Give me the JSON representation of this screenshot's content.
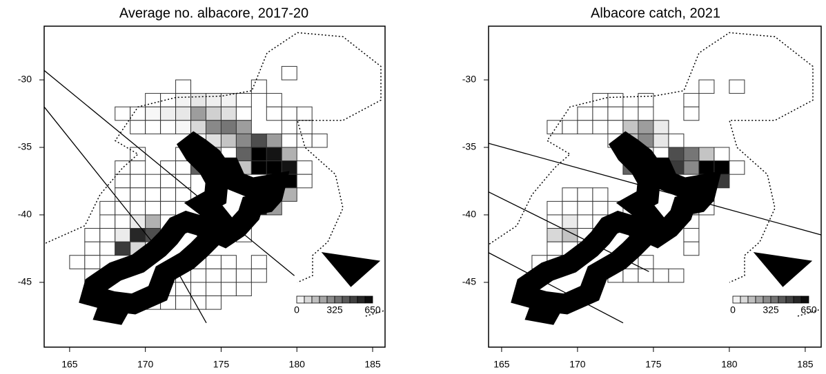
{
  "maps": [
    {
      "title": "Average no. albacore, 2017-20",
      "xlim": [
        163.32,
        185.82
      ],
      "ylim": [
        -49.8,
        -26.02
      ],
      "xticks": [
        165,
        170,
        175,
        180,
        185
      ],
      "yticks": [
        -30,
        -35,
        -40,
        -45
      ],
      "legend_ticks": [
        0,
        325,
        650
      ],
      "cells": [
        [
          172,
          -30,
          0
        ],
        [
          179,
          -29,
          0
        ],
        [
          177,
          -30,
          0
        ],
        [
          170,
          -31,
          0
        ],
        [
          171,
          -31,
          0
        ],
        [
          172,
          -31,
          30
        ],
        [
          173,
          -31,
          60
        ],
        [
          174,
          -31,
          40
        ],
        [
          175,
          -31,
          30
        ],
        [
          176,
          -31,
          0
        ],
        [
          178,
          -31,
          0
        ],
        [
          168,
          -32,
          0
        ],
        [
          169,
          -32,
          0
        ],
        [
          170,
          -32,
          20
        ],
        [
          171,
          -32,
          40
        ],
        [
          172,
          -32,
          60
        ],
        [
          173,
          -32,
          250
        ],
        [
          174,
          -32,
          120
        ],
        [
          175,
          -32,
          80
        ],
        [
          176,
          -32,
          0
        ],
        [
          178,
          -32,
          0
        ],
        [
          179,
          -32,
          0
        ],
        [
          180,
          -32,
          0
        ],
        [
          169,
          -33,
          0
        ],
        [
          170,
          -33,
          0
        ],
        [
          171,
          -33,
          0
        ],
        [
          172,
          -33,
          20
        ],
        [
          173,
          -33,
          100
        ],
        [
          174,
          -33,
          300
        ],
        [
          175,
          -33,
          350
        ],
        [
          176,
          -33,
          250
        ],
        [
          179,
          -33,
          0
        ],
        [
          180,
          -33,
          0
        ],
        [
          174,
          -34,
          80
        ],
        [
          175,
          -34,
          150
        ],
        [
          176,
          -34,
          300
        ],
        [
          177,
          -34,
          450
        ],
        [
          178,
          -34,
          250
        ],
        [
          179,
          -34,
          0
        ],
        [
          180,
          -34,
          0
        ],
        [
          181,
          -34,
          0
        ],
        [
          169,
          -35,
          0
        ],
        [
          172,
          -35,
          0
        ],
        [
          173,
          -35,
          300
        ],
        [
          174,
          -35,
          150
        ],
        [
          176,
          -35,
          400
        ],
        [
          177,
          -35,
          650
        ],
        [
          178,
          -35,
          600
        ],
        [
          179,
          -35,
          200
        ],
        [
          168,
          -36,
          0
        ],
        [
          169,
          -36,
          0
        ],
        [
          171,
          -36,
          0
        ],
        [
          172,
          -36,
          0
        ],
        [
          173,
          -36,
          400
        ],
        [
          176,
          -36,
          150
        ],
        [
          177,
          -36,
          650
        ],
        [
          178,
          -36,
          650
        ],
        [
          179,
          -36,
          600
        ],
        [
          180,
          -36,
          0
        ],
        [
          168,
          -37,
          0
        ],
        [
          169,
          -37,
          0
        ],
        [
          170,
          -37,
          0
        ],
        [
          171,
          -37,
          0
        ],
        [
          172,
          -37,
          0
        ],
        [
          178,
          -37,
          650
        ],
        [
          179,
          -37,
          650
        ],
        [
          180,
          -37,
          0
        ],
        [
          168,
          -38,
          0
        ],
        [
          169,
          -38,
          0
        ],
        [
          170,
          -38,
          0
        ],
        [
          171,
          -38,
          0
        ],
        [
          172,
          -38,
          0
        ],
        [
          177,
          -38,
          100
        ],
        [
          178,
          -38,
          600
        ],
        [
          179,
          -38,
          200
        ],
        [
          167,
          -39,
          0
        ],
        [
          168,
          -39,
          0
        ],
        [
          169,
          -39,
          0
        ],
        [
          170,
          -39,
          0
        ],
        [
          171,
          -39,
          0
        ],
        [
          176,
          -39,
          0
        ],
        [
          177,
          -39,
          600
        ],
        [
          178,
          -39,
          250
        ],
        [
          167,
          -40,
          0
        ],
        [
          168,
          -40,
          0
        ],
        [
          169,
          -40,
          50
        ],
        [
          170,
          -40,
          200
        ],
        [
          176,
          -40,
          100
        ],
        [
          166,
          -41,
          0
        ],
        [
          167,
          -41,
          0
        ],
        [
          168,
          -41,
          50
        ],
        [
          169,
          -41,
          550
        ],
        [
          170,
          -41,
          450
        ],
        [
          176,
          -41,
          0
        ],
        [
          166,
          -42,
          0
        ],
        [
          167,
          -42,
          0
        ],
        [
          168,
          -42,
          500
        ],
        [
          169,
          -42,
          100
        ],
        [
          165,
          -43,
          0
        ],
        [
          166,
          -43,
          0
        ],
        [
          172,
          -43,
          0
        ],
        [
          173,
          -43,
          0
        ],
        [
          174,
          -43,
          0
        ],
        [
          175,
          -43,
          0
        ],
        [
          177,
          -43,
          0
        ],
        [
          166,
          -44,
          0
        ],
        [
          170,
          -44,
          0
        ],
        [
          171,
          -44,
          0
        ],
        [
          172,
          -44,
          0
        ],
        [
          173,
          -44,
          0
        ],
        [
          174,
          -44,
          0
        ],
        [
          175,
          -44,
          0
        ],
        [
          176,
          -44,
          0
        ],
        [
          177,
          -44,
          0
        ],
        [
          170,
          -45,
          0
        ],
        [
          171,
          -45,
          0
        ],
        [
          172,
          -45,
          0
        ],
        [
          173,
          -45,
          0
        ],
        [
          174,
          -45,
          0
        ],
        [
          175,
          -45,
          0
        ],
        [
          176,
          -45,
          0
        ],
        [
          170,
          -46,
          0
        ],
        [
          171,
          -46,
          0
        ],
        [
          172,
          -46,
          0
        ],
        [
          173,
          -46,
          0
        ],
        [
          174,
          -46,
          0
        ]
      ]
    },
    {
      "title": "Albacore catch, 2021",
      "xlim": [
        164.14,
        186.05
      ],
      "ylim": [
        -49.8,
        -26.02
      ],
      "xticks": [
        165,
        170,
        175,
        180,
        185
      ],
      "yticks": [
        -30,
        -35,
        -40,
        -45
      ],
      "legend_ticks": [
        0,
        325,
        650
      ],
      "cells": [
        [
          178,
          -30,
          0
        ],
        [
          180,
          -30,
          0
        ],
        [
          171,
          -31,
          0
        ],
        [
          172,
          -31,
          0
        ],
        [
          174,
          -31,
          0
        ],
        [
          177,
          -31,
          0
        ],
        [
          170,
          -32,
          0
        ],
        [
          171,
          -32,
          0
        ],
        [
          172,
          -32,
          0
        ],
        [
          173,
          -32,
          0
        ],
        [
          174,
          -32,
          0
        ],
        [
          177,
          -32,
          0
        ],
        [
          168,
          -33,
          0
        ],
        [
          169,
          -33,
          0
        ],
        [
          170,
          -33,
          0
        ],
        [
          171,
          -33,
          0
        ],
        [
          172,
          -33,
          0
        ],
        [
          173,
          -33,
          150
        ],
        [
          174,
          -33,
          250
        ],
        [
          175,
          -33,
          50
        ],
        [
          172,
          -34,
          0
        ],
        [
          173,
          -34,
          150
        ],
        [
          174,
          -34,
          300
        ],
        [
          175,
          -34,
          60
        ],
        [
          176,
          -34,
          0
        ],
        [
          173,
          -35,
          300
        ],
        [
          174,
          -35,
          50
        ],
        [
          176,
          -35,
          450
        ],
        [
          177,
          -35,
          350
        ],
        [
          178,
          -35,
          150
        ],
        [
          179,
          -35,
          0
        ],
        [
          173,
          -36,
          400
        ],
        [
          176,
          -36,
          500
        ],
        [
          177,
          -36,
          300
        ],
        [
          178,
          -36,
          650
        ],
        [
          179,
          -36,
          650
        ],
        [
          180,
          -36,
          0
        ],
        [
          178,
          -37,
          650
        ],
        [
          179,
          -37,
          500
        ],
        [
          169,
          -38,
          0
        ],
        [
          170,
          -38,
          0
        ],
        [
          171,
          -38,
          0
        ],
        [
          178,
          -38,
          350
        ],
        [
          168,
          -39,
          0
        ],
        [
          169,
          -39,
          0
        ],
        [
          170,
          -39,
          0
        ],
        [
          171,
          -39,
          0
        ],
        [
          172,
          -39,
          0
        ],
        [
          177,
          -39,
          100
        ],
        [
          178,
          -39,
          0
        ],
        [
          168,
          -40,
          0
        ],
        [
          169,
          -40,
          50
        ],
        [
          170,
          -40,
          0
        ],
        [
          171,
          -40,
          0
        ],
        [
          172,
          -40,
          0
        ],
        [
          177,
          -40,
          0
        ],
        [
          168,
          -41,
          100
        ],
        [
          169,
          -41,
          150
        ],
        [
          170,
          -41,
          0
        ],
        [
          177,
          -41,
          0
        ],
        [
          168,
          -42,
          0
        ],
        [
          169,
          -42,
          0
        ],
        [
          170,
          -42,
          0
        ],
        [
          177,
          -42,
          0
        ],
        [
          167,
          -43,
          0
        ],
        [
          168,
          -43,
          0
        ],
        [
          172,
          -43,
          0
        ],
        [
          173,
          -43,
          0
        ],
        [
          174,
          -43,
          0
        ],
        [
          172,
          -44,
          0
        ],
        [
          173,
          -44,
          0
        ],
        [
          174,
          -44,
          0
        ],
        [
          175,
          -44,
          0
        ],
        [
          176,
          -44,
          0
        ]
      ]
    }
  ]
}
